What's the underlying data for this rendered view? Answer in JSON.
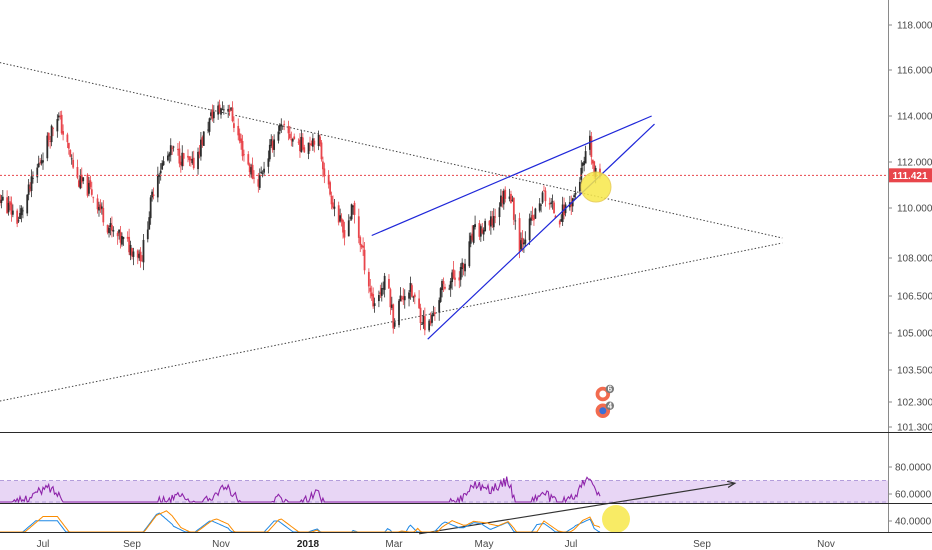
{
  "chart_data": {
    "type": "candlestick",
    "colors": {
      "up": "#2d2d2d",
      "down": "#e8454b",
      "rsi_line": "#8e24aa",
      "rsi_band": "#e8d6f5",
      "wedge_lines": "#1f27d9",
      "trendlines": "#444444",
      "price_line": "#e8454b",
      "highlight": "#f7e84a",
      "macd_fast": "#1e88e5",
      "macd_slow": "#fb8c00"
    },
    "price_axis": {
      "ticks": [
        "118.000",
        "116.000",
        "114.000",
        "112.000",
        "110.000",
        "108.000",
        "106.500",
        "105.000",
        "103.500",
        "102.300",
        "101.300"
      ],
      "ylim": [
        101.3,
        119.0
      ]
    },
    "last_price": "111.421",
    "x_ticks": [
      {
        "label": "Jul",
        "bold": false
      },
      {
        "label": "Sep",
        "bold": false
      },
      {
        "label": "Nov",
        "bold": false
      },
      {
        "label": "2018",
        "bold": true
      },
      {
        "label": "Mar",
        "bold": false
      },
      {
        "label": "May",
        "bold": false
      },
      {
        "label": "Jul",
        "bold": false
      },
      {
        "label": "Sep",
        "bold": false
      },
      {
        "label": "Nov",
        "bold": false
      }
    ],
    "price_anchors": [
      [
        "2017-05-25",
        111.0
      ],
      [
        "2017-06-14",
        109.5
      ],
      [
        "2017-07-11",
        114.1
      ],
      [
        "2017-07-25",
        111.2
      ],
      [
        "2017-08-04",
        110.7
      ],
      [
        "2017-08-18",
        109.0
      ],
      [
        "2017-09-08",
        108.1
      ],
      [
        "2017-09-18",
        111.5
      ],
      [
        "2017-09-29",
        112.5
      ],
      [
        "2017-10-13",
        111.8
      ],
      [
        "2017-10-27",
        114.1
      ],
      [
        "2017-11-07",
        114.5
      ],
      [
        "2017-11-17",
        112.5
      ],
      [
        "2017-11-27",
        111.0
      ],
      [
        "2017-12-12",
        113.5
      ],
      [
        "2017-12-29",
        112.7
      ],
      [
        "2018-01-08",
        113.2
      ],
      [
        "2018-01-15",
        111.0
      ],
      [
        "2018-01-26",
        109.0
      ],
      [
        "2018-02-02",
        110.0
      ],
      [
        "2018-02-16",
        106.2
      ],
      [
        "2018-02-26",
        107.2
      ],
      [
        "2018-03-02",
        105.5
      ],
      [
        "2018-03-08",
        106.5
      ],
      [
        "2018-03-13",
        106.8
      ],
      [
        "2018-03-26",
        105.1
      ],
      [
        "2018-04-05",
        106.8
      ],
      [
        "2018-04-20",
        107.6
      ],
      [
        "2018-04-27",
        109.0
      ],
      [
        "2018-05-08",
        109.2
      ],
      [
        "2018-05-21",
        111.0
      ],
      [
        "2018-05-29",
        108.6
      ],
      [
        "2018-06-08",
        109.6
      ],
      [
        "2018-06-15",
        110.6
      ],
      [
        "2018-06-25",
        109.6
      ],
      [
        "2018-07-06",
        110.5
      ],
      [
        "2018-07-11",
        111.5
      ],
      [
        "2018-07-17",
        112.8
      ],
      [
        "2018-07-20",
        111.4
      ],
      [
        "2018-07-24",
        111.4
      ]
    ],
    "rsi": {
      "ticks": [
        "80.0000",
        "60.0000",
        "40.0000"
      ],
      "ylim": [
        30,
        82
      ],
      "band": [
        30,
        70
      ],
      "anchors": [
        [
          "2017-05-25",
          44
        ],
        [
          "2017-06-10",
          52
        ],
        [
          "2017-07-05",
          65
        ],
        [
          "2017-07-14",
          58
        ],
        [
          "2017-07-28",
          44
        ],
        [
          "2017-08-10",
          40
        ],
        [
          "2017-08-25",
          48
        ],
        [
          "2017-09-08",
          38
        ],
        [
          "2017-09-20",
          55
        ],
        [
          "2017-10-05",
          58
        ],
        [
          "2017-10-16",
          50
        ],
        [
          "2017-11-01",
          63
        ],
        [
          "2017-11-08",
          64
        ],
        [
          "2017-11-20",
          45
        ],
        [
          "2017-11-28",
          41
        ],
        [
          "2017-12-12",
          58
        ],
        [
          "2017-12-22",
          49
        ],
        [
          "2018-01-08",
          61
        ],
        [
          "2018-01-16",
          48
        ],
        [
          "2018-01-26",
          42
        ],
        [
          "2018-02-05",
          34
        ],
        [
          "2018-02-16",
          36
        ],
        [
          "2018-02-26",
          46
        ],
        [
          "2018-03-05",
          38
        ],
        [
          "2018-03-16",
          44
        ],
        [
          "2018-03-26",
          38
        ],
        [
          "2018-04-05",
          50
        ],
        [
          "2018-04-20",
          58
        ],
        [
          "2018-04-27",
          68
        ],
        [
          "2018-05-08",
          63
        ],
        [
          "2018-05-21",
          70
        ],
        [
          "2018-05-29",
          45
        ],
        [
          "2018-06-08",
          56
        ],
        [
          "2018-06-15",
          61
        ],
        [
          "2018-06-25",
          52
        ],
        [
          "2018-07-06",
          58
        ],
        [
          "2018-07-11",
          66
        ],
        [
          "2018-07-17",
          72
        ],
        [
          "2018-07-20",
          63
        ],
        [
          "2018-07-24",
          59
        ]
      ]
    },
    "wedge_upper": [
      [
        "2018-02-15",
        108.9
      ],
      [
        "2018-08-29",
        114.0
      ]
    ],
    "wedge_lower": [
      [
        "2018-03-26",
        104.75
      ],
      [
        "2018-08-31",
        113.65
      ]
    ],
    "triangle_upper": [
      [
        "2017-05-20",
        116.5
      ],
      [
        "2018-11-28",
        108.8
      ]
    ],
    "triangle_lower": [
      [
        "2017-05-20",
        102.2
      ],
      [
        "2018-11-28",
        108.6
      ]
    ],
    "rsi_trendline": [
      [
        "2018-03-20",
        30.5
      ],
      [
        "2018-10-26",
        68
      ]
    ],
    "highlight_circle": [
      "2018-07-24",
      111.0
    ],
    "events": [
      {
        "date": "2018-07-26",
        "value": 102.6,
        "label": "6"
      },
      {
        "date": "2018-07-26",
        "value": 101.95,
        "label": "4"
      }
    ]
  }
}
